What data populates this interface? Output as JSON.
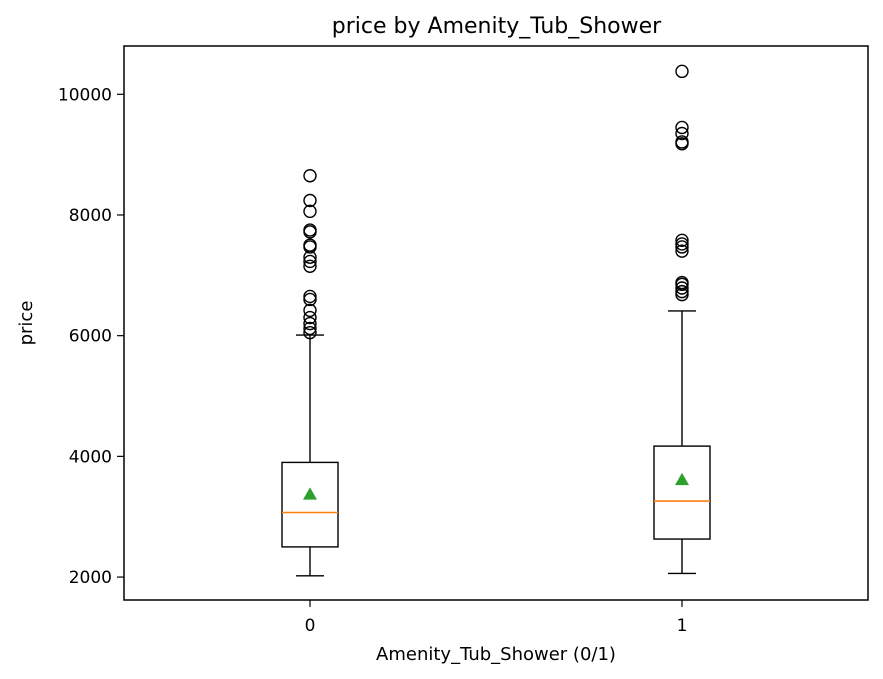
{
  "chart_data": {
    "type": "boxplot",
    "title": "price by Amenity_Tub_Shower",
    "xlabel": "Amenity_Tub_Shower (0/1)",
    "ylabel": "price",
    "categories": [
      "0",
      "1"
    ],
    "ylim": [
      1620,
      10800
    ],
    "yticks": [
      2000,
      4000,
      6000,
      8000,
      10000
    ],
    "grid": false,
    "colors": {
      "median": "#ff7f0e",
      "mean": "#2ca02c",
      "box": "#000000"
    },
    "boxes": [
      {
        "category": "0",
        "whisker_low": 2020,
        "q1": 2500,
        "median": 3070,
        "q3": 3900,
        "whisker_high": 6010,
        "mean": 3370,
        "outliers": [
          6050,
          6120,
          6200,
          6300,
          6420,
          6600,
          6650,
          7150,
          7230,
          7300,
          7470,
          7500,
          7720,
          7750,
          8060,
          8240,
          8650
        ]
      },
      {
        "category": "1",
        "whisker_low": 2060,
        "q1": 2630,
        "median": 3260,
        "q3": 4170,
        "whisker_high": 6410,
        "mean": 3610,
        "outliers": [
          6680,
          6730,
          6790,
          6850,
          6880,
          7400,
          7470,
          7520,
          7580,
          9180,
          9210,
          9350,
          9450,
          10380
        ]
      }
    ]
  }
}
